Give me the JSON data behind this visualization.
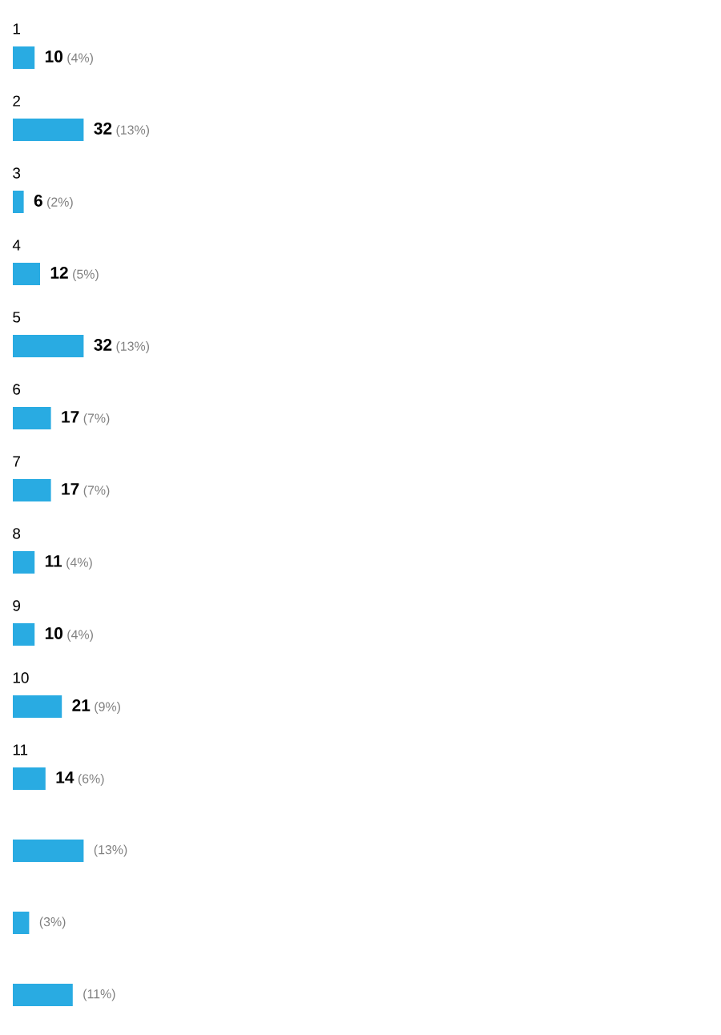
{
  "chart_data": {
    "type": "bar",
    "orientation": "horizontal",
    "color": "#29abe2",
    "categories": [
      "1",
      "2",
      "3",
      "4",
      "5",
      "6",
      "7",
      "8",
      "9",
      "10",
      "11",
      null,
      null,
      null
    ],
    "values": [
      4,
      13,
      2,
      5,
      13,
      7,
      7,
      4,
      4,
      9,
      6,
      13,
      3,
      11
    ],
    "value_labels": [
      "**10** (4%)",
      "**32** (13%)",
      "**6** (2%)",
      "**12** (5%)",
      "**32** (13%)",
      "**17** (7%)",
      "**17** (7%)",
      "**11** (4%)",
      "**10** (4%)",
      "**21** (9%)",
      "**14** (6%)",
      "(13%)",
      "(3%)",
      "(11%)"
    ]
  }
}
